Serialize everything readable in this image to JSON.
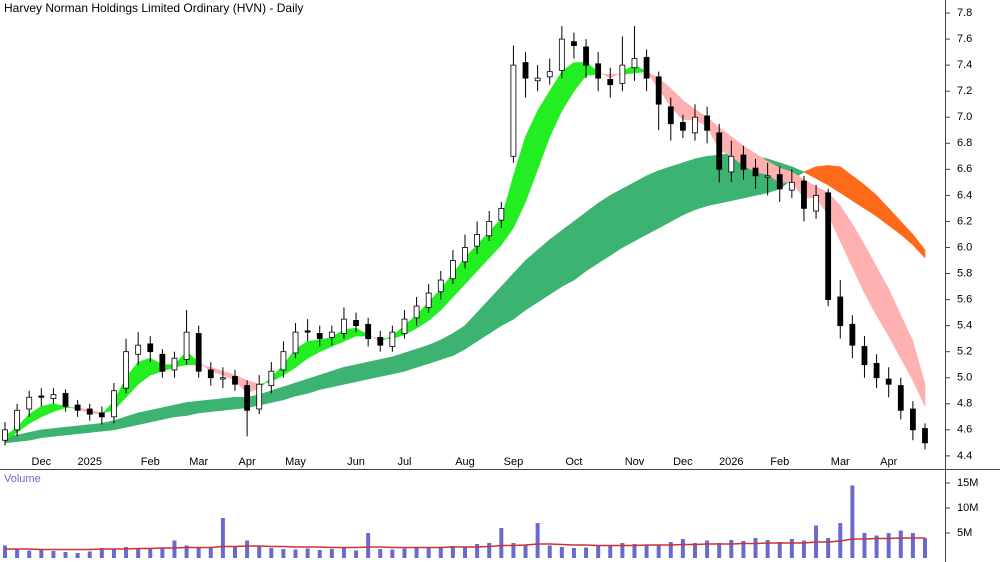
{
  "chart_data": {
    "type": "candlestick",
    "title": "Harvey Norman Holdings Limited Ordinary (HVN) - Daily",
    "categories": [
      null,
      null,
      null,
      "Dec",
      null,
      null,
      null,
      "2025",
      null,
      null,
      null,
      null,
      "Feb",
      null,
      null,
      null,
      "Mar",
      null,
      null,
      null,
      "Apr",
      null,
      null,
      null,
      "May",
      null,
      null,
      null,
      null,
      "Jun",
      null,
      null,
      null,
      "Jul",
      null,
      null,
      null,
      null,
      "Aug",
      null,
      null,
      null,
      "Sep",
      null,
      null,
      null,
      null,
      "Oct",
      null,
      null,
      null,
      null,
      "Nov",
      null,
      null,
      null,
      "Dec",
      null,
      null,
      null,
      "2026",
      null,
      null,
      null,
      "Feb",
      null,
      null,
      null,
      null,
      "Mar",
      null,
      null,
      null,
      "Apr",
      null,
      null,
      null
    ],
    "open": [
      4.52,
      4.6,
      4.76,
      4.86,
      4.84,
      4.88,
      4.79,
      4.76,
      4.73,
      4.7,
      4.92,
      5.18,
      5.26,
      5.18,
      5.06,
      5.14,
      5.34,
      5.06,
      4.99,
      5.01,
      4.94,
      4.76,
      4.94,
      5.06,
      5.19,
      5.36,
      5.34,
      5.31,
      5.34,
      5.44,
      5.41,
      5.31,
      5.24,
      5.34,
      5.46,
      5.54,
      5.66,
      5.76,
      5.89,
      6.01,
      6.09,
      6.21,
      6.7,
      7.42,
      7.28,
      7.31,
      7.36,
      7.58,
      7.54,
      7.41,
      7.29,
      7.26,
      7.38,
      7.46,
      7.31,
      7.08,
      6.96,
      6.88,
      7.01,
      6.88,
      6.58,
      6.71,
      6.61,
      6.54,
      6.56,
      6.44,
      6.51,
      6.28,
      6.42,
      5.62,
      5.41,
      5.24,
      5.11,
      4.99,
      4.94,
      4.76,
      4.61
    ],
    "high": [
      4.66,
      4.8,
      4.9,
      4.92,
      4.92,
      4.91,
      4.83,
      4.8,
      4.78,
      4.96,
      5.3,
      5.35,
      5.32,
      5.22,
      5.2,
      5.52,
      5.4,
      5.12,
      5.08,
      5.06,
      4.98,
      5.02,
      5.12,
      5.28,
      5.42,
      5.45,
      5.4,
      5.4,
      5.54,
      5.5,
      5.46,
      5.36,
      5.4,
      5.52,
      5.62,
      5.72,
      5.82,
      5.98,
      6.1,
      6.2,
      6.28,
      6.35,
      7.55,
      7.5,
      7.4,
      7.45,
      7.7,
      7.65,
      7.6,
      7.5,
      7.38,
      7.62,
      7.7,
      7.52,
      7.35,
      7.15,
      7.02,
      7.1,
      7.08,
      6.95,
      6.82,
      6.78,
      6.68,
      6.65,
      6.62,
      6.6,
      6.55,
      6.48,
      6.45,
      5.75,
      5.48,
      5.32,
      5.18,
      5.08,
      5.0,
      4.82,
      4.65
    ],
    "low": [
      4.48,
      4.55,
      4.7,
      4.78,
      4.8,
      4.74,
      4.7,
      4.67,
      4.64,
      4.65,
      4.88,
      5.1,
      5.12,
      5.0,
      5.0,
      5.1,
      5.0,
      4.94,
      4.92,
      4.9,
      4.55,
      4.72,
      4.88,
      5.0,
      5.15,
      5.28,
      5.24,
      5.25,
      5.3,
      5.35,
      5.24,
      5.2,
      5.2,
      5.3,
      5.4,
      5.5,
      5.6,
      5.72,
      5.84,
      5.95,
      6.05,
      6.15,
      6.65,
      7.15,
      7.2,
      7.25,
      7.3,
      7.45,
      7.3,
      7.2,
      7.15,
      7.2,
      7.28,
      7.2,
      6.9,
      6.82,
      6.84,
      6.82,
      6.8,
      6.5,
      6.5,
      6.52,
      6.45,
      6.4,
      6.35,
      6.38,
      6.2,
      6.22,
      5.55,
      5.3,
      5.15,
      5.0,
      4.92,
      4.85,
      4.68,
      4.52,
      4.45
    ],
    "close": [
      4.6,
      4.75,
      4.85,
      4.85,
      4.87,
      4.78,
      4.75,
      4.72,
      4.7,
      4.9,
      5.2,
      5.25,
      5.2,
      5.05,
      5.15,
      5.35,
      5.05,
      5.0,
      5.0,
      4.95,
      4.75,
      4.95,
      5.05,
      5.2,
      5.35,
      5.35,
      5.3,
      5.35,
      5.45,
      5.4,
      5.3,
      5.25,
      5.35,
      5.45,
      5.55,
      5.65,
      5.75,
      5.9,
      6.0,
      6.1,
      6.2,
      6.3,
      7.4,
      7.3,
      7.3,
      7.35,
      7.6,
      7.55,
      7.4,
      7.3,
      7.25,
      7.4,
      7.45,
      7.3,
      7.1,
      6.95,
      6.9,
      7.0,
      6.9,
      6.6,
      6.7,
      6.6,
      6.55,
      6.55,
      6.45,
      6.5,
      6.3,
      6.4,
      5.6,
      5.4,
      5.25,
      5.1,
      5.0,
      4.95,
      4.75,
      4.6,
      4.5
    ],
    "up_color": "#ffffff",
    "down_color": "#000000",
    "bands": [
      {
        "fast": [
          4.55,
          4.56,
          4.58,
          4.6,
          4.61,
          4.62,
          4.63,
          4.64,
          4.65,
          4.67,
          4.7,
          4.73,
          4.75,
          4.77,
          4.79,
          4.81,
          4.82,
          4.83,
          4.84,
          4.85,
          4.85,
          4.87,
          4.9,
          4.93,
          4.96,
          4.99,
          5.02,
          5.05,
          5.08,
          5.1,
          5.12,
          5.14,
          5.16,
          5.19,
          5.22,
          5.25,
          5.29,
          5.34,
          5.4,
          5.5,
          5.6,
          5.7,
          5.8,
          5.9,
          5.98,
          6.06,
          6.13,
          6.2,
          6.27,
          6.34,
          6.4,
          6.45,
          6.5,
          6.55,
          6.59,
          6.62,
          6.65,
          6.68,
          6.7,
          6.71,
          6.72,
          6.71,
          6.7,
          6.68,
          6.65,
          6.62,
          6.58,
          6.53,
          6.48,
          6.42,
          6.36,
          6.3,
          6.24,
          6.17,
          6.1,
          6.02,
          5.92
        ],
        "slow": [
          4.5,
          4.51,
          4.52,
          4.54,
          4.55,
          4.56,
          4.57,
          4.58,
          4.59,
          4.6,
          4.62,
          4.64,
          4.66,
          4.68,
          4.7,
          4.71,
          4.73,
          4.74,
          4.75,
          4.76,
          4.77,
          4.79,
          4.81,
          4.83,
          4.86,
          4.88,
          4.91,
          4.93,
          4.95,
          4.97,
          4.99,
          5.01,
          5.03,
          5.05,
          5.08,
          5.11,
          5.14,
          5.17,
          5.22,
          5.28,
          5.34,
          5.4,
          5.45,
          5.52,
          5.58,
          5.64,
          5.7,
          5.75,
          5.82,
          5.88,
          5.94,
          6.0,
          6.05,
          6.1,
          6.15,
          6.2,
          6.25,
          6.29,
          6.32,
          6.34,
          6.36,
          6.38,
          6.4,
          6.42,
          6.45,
          6.52,
          6.58,
          6.62,
          6.63,
          6.62,
          6.55,
          6.48,
          6.4,
          6.3,
          6.2,
          6.1,
          5.98
        ],
        "up_color": "#3cb371",
        "down_color": "#ff6a1a"
      },
      {
        "fast": [
          4.55,
          4.62,
          4.72,
          4.78,
          4.8,
          4.78,
          4.76,
          4.73,
          4.72,
          4.82,
          5.0,
          5.12,
          5.15,
          5.1,
          5.1,
          5.2,
          5.12,
          5.05,
          5.02,
          4.98,
          4.88,
          4.92,
          5.0,
          5.1,
          5.22,
          5.28,
          5.29,
          5.31,
          5.37,
          5.38,
          5.33,
          5.28,
          5.32,
          5.4,
          5.48,
          5.58,
          5.68,
          5.8,
          5.92,
          6.02,
          6.12,
          6.22,
          6.55,
          6.85,
          7.05,
          7.2,
          7.35,
          7.42,
          7.42,
          7.35,
          7.3,
          7.35,
          7.4,
          7.35,
          7.22,
          7.08,
          6.98,
          6.98,
          6.93,
          6.75,
          6.7,
          6.63,
          6.58,
          6.56,
          6.5,
          6.5,
          6.38,
          6.38,
          6.25,
          6.05,
          5.85,
          5.65,
          5.48,
          5.32,
          5.15,
          4.98,
          4.78
        ],
        "slow": [
          4.52,
          4.58,
          4.65,
          4.7,
          4.74,
          4.77,
          4.77,
          4.75,
          4.73,
          4.75,
          4.85,
          4.95,
          5.02,
          5.05,
          5.08,
          5.1,
          5.1,
          5.08,
          5.05,
          5.02,
          4.98,
          4.95,
          4.97,
          5.02,
          5.08,
          5.15,
          5.2,
          5.24,
          5.28,
          5.32,
          5.32,
          5.3,
          5.3,
          5.33,
          5.38,
          5.44,
          5.52,
          5.62,
          5.72,
          5.82,
          5.92,
          6.02,
          6.15,
          6.35,
          6.6,
          6.85,
          7.05,
          7.2,
          7.32,
          7.33,
          7.33,
          7.33,
          7.34,
          7.35,
          7.3,
          7.22,
          7.13,
          7.06,
          7.0,
          6.92,
          6.85,
          6.78,
          6.72,
          6.66,
          6.61,
          6.58,
          6.52,
          6.47,
          6.42,
          6.32,
          6.18,
          6.02,
          5.85,
          5.68,
          5.48,
          5.28,
          4.95
        ],
        "up_color": "#22ee22",
        "down_color": "#ffb0b0"
      }
    ],
    "ylim": [
      4.33,
      7.9
    ],
    "yticks": [
      4.4,
      4.6,
      4.8,
      {
        "value": 5,
        "label": "5.0"
      },
      5.2,
      5.4,
      5.6,
      5.8,
      {
        "value": 6,
        "label": "6.0"
      },
      6.2,
      6.4,
      6.6,
      6.8,
      {
        "value": 7,
        "label": "7.0"
      },
      7.2,
      7.4,
      7.6,
      7.8
    ],
    "volume": {
      "title": "Volume",
      "color": "#6a6acd",
      "ma_color": "#cc3333",
      "values": [
        2500000,
        1800000,
        1500000,
        1600000,
        1400000,
        1200000,
        1000000,
        1300000,
        2000000,
        1800000,
        2200000,
        2000000,
        1800000,
        1900000,
        3500000,
        2500000,
        2000000,
        2200000,
        8000000,
        2200000,
        3500000,
        2500000,
        2000000,
        1800000,
        1700000,
        1900000,
        1600000,
        1800000,
        2000000,
        1500000,
        5000000,
        1800000,
        1700000,
        1900000,
        2000000,
        2200000,
        2000000,
        2400000,
        2300000,
        2800000,
        3000000,
        6000000,
        3000000,
        2500000,
        7000000,
        2500000,
        2200000,
        2000000,
        2100000,
        2600000,
        2400000,
        3000000,
        2800000,
        2500000,
        2600000,
        3200000,
        3800000,
        3000000,
        3500000,
        3000000,
        3600000,
        3400000,
        4000000,
        3600000,
        3200000,
        3800000,
        3500000,
        6500000,
        4000000,
        7000000,
        14500000,
        5000000,
        4500000,
        5000000,
        5500000,
        5000000,
        4000000
      ],
      "ma": [
        1800000,
        1800000,
        1800000,
        1700000,
        1700000,
        1700000,
        1700000,
        1700000,
        1800000,
        1800000,
        1800000,
        1900000,
        1900000,
        2000000,
        2000000,
        2100000,
        2100000,
        2100000,
        2300000,
        2300000,
        2400000,
        2400000,
        2300000,
        2300000,
        2200000,
        2200000,
        2200000,
        2100000,
        2100000,
        2100000,
        2200000,
        2200000,
        2100000,
        2100000,
        2100000,
        2100000,
        2100000,
        2200000,
        2200000,
        2200000,
        2300000,
        2500000,
        2500000,
        2600000,
        2800000,
        2800000,
        2700000,
        2600000,
        2600000,
        2500000,
        2500000,
        2500000,
        2500000,
        2600000,
        2600000,
        2600000,
        2700000,
        2700000,
        2800000,
        2800000,
        2800000,
        2900000,
        2900000,
        3000000,
        3000000,
        3000000,
        3000000,
        3200000,
        3200000,
        3400000,
        3800000,
        3800000,
        3900000,
        3900000,
        4000000,
        4000000,
        4000000
      ],
      "ylim": [
        0,
        17600000
      ],
      "yticks": [
        {
          "value": 5000000,
          "label": "5M"
        },
        {
          "value": 10000000,
          "label": "10M"
        },
        {
          "value": 15000000,
          "label": "15M"
        }
      ]
    }
  }
}
